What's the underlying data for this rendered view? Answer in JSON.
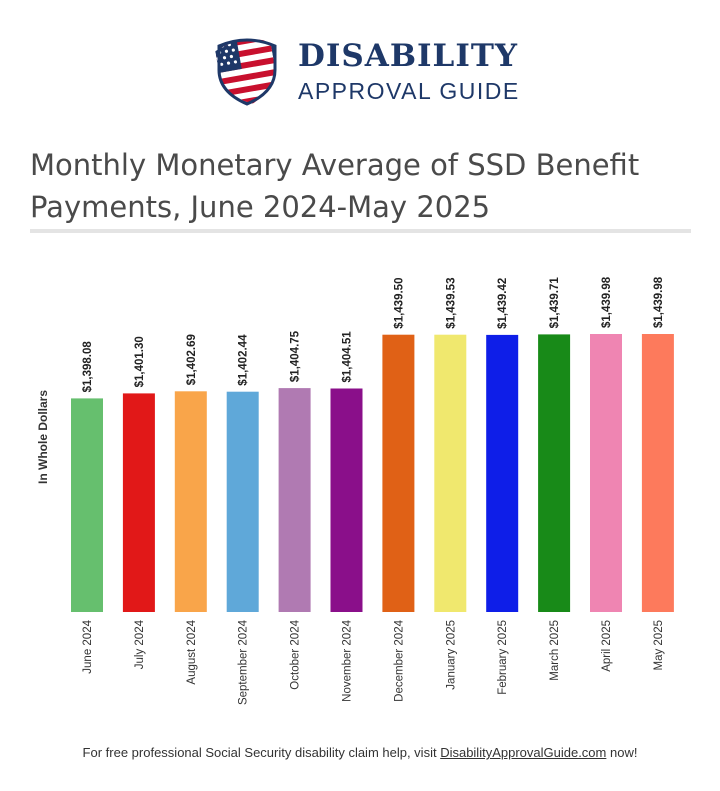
{
  "brand": {
    "line1": "DISABILITY",
    "line2": "APPROVAL GUIDE",
    "logo_icon": "us-flag-shield-icon",
    "colors": {
      "navy": "#1e3868",
      "red": "#c8102e"
    }
  },
  "footer": {
    "text_before": "For free professional Social Security disability claim help, visit ",
    "link_text": "DisabilityApprovalGuide.com",
    "text_after": " now!"
  },
  "chart_data": {
    "type": "bar",
    "title": "Monthly Monetary Average of SSD Benefit Payments, June 2024-May 2025",
    "xlabel": "",
    "ylabel": "In Whole Dollars",
    "ylim": [
      0,
      1439.98
    ],
    "grid": false,
    "categories": [
      "June 2024",
      "July 2024",
      "August 2024",
      "September 2024",
      "October 2024",
      "November 2024",
      "December 2024",
      "January 2025",
      "February 2025",
      "March 2025",
      "April 2025",
      "May 2025"
    ],
    "values": [
      1398.08,
      1401.3,
      1402.69,
      1402.44,
      1404.75,
      1404.51,
      1439.5,
      1439.53,
      1439.42,
      1439.71,
      1439.98,
      1439.98
    ],
    "value_labels": [
      "$1,398.08",
      "$1,401.30",
      "$1,402.69",
      "$1,402.44",
      "$1,404.75",
      "$1,404.51",
      "$1,439.50",
      "$1,439.53",
      "$1,439.42",
      "$1,439.71",
      "$1,439.98",
      "$1,439.98"
    ],
    "colors": [
      "#66bf6e",
      "#e11818",
      "#f9a54a",
      "#5fa8d9",
      "#b07ab2",
      "#8a0f8a",
      "#e06116",
      "#f0e86e",
      "#0e1ee8",
      "#188a18",
      "#ef85b2",
      "#fd7a5c"
    ]
  }
}
